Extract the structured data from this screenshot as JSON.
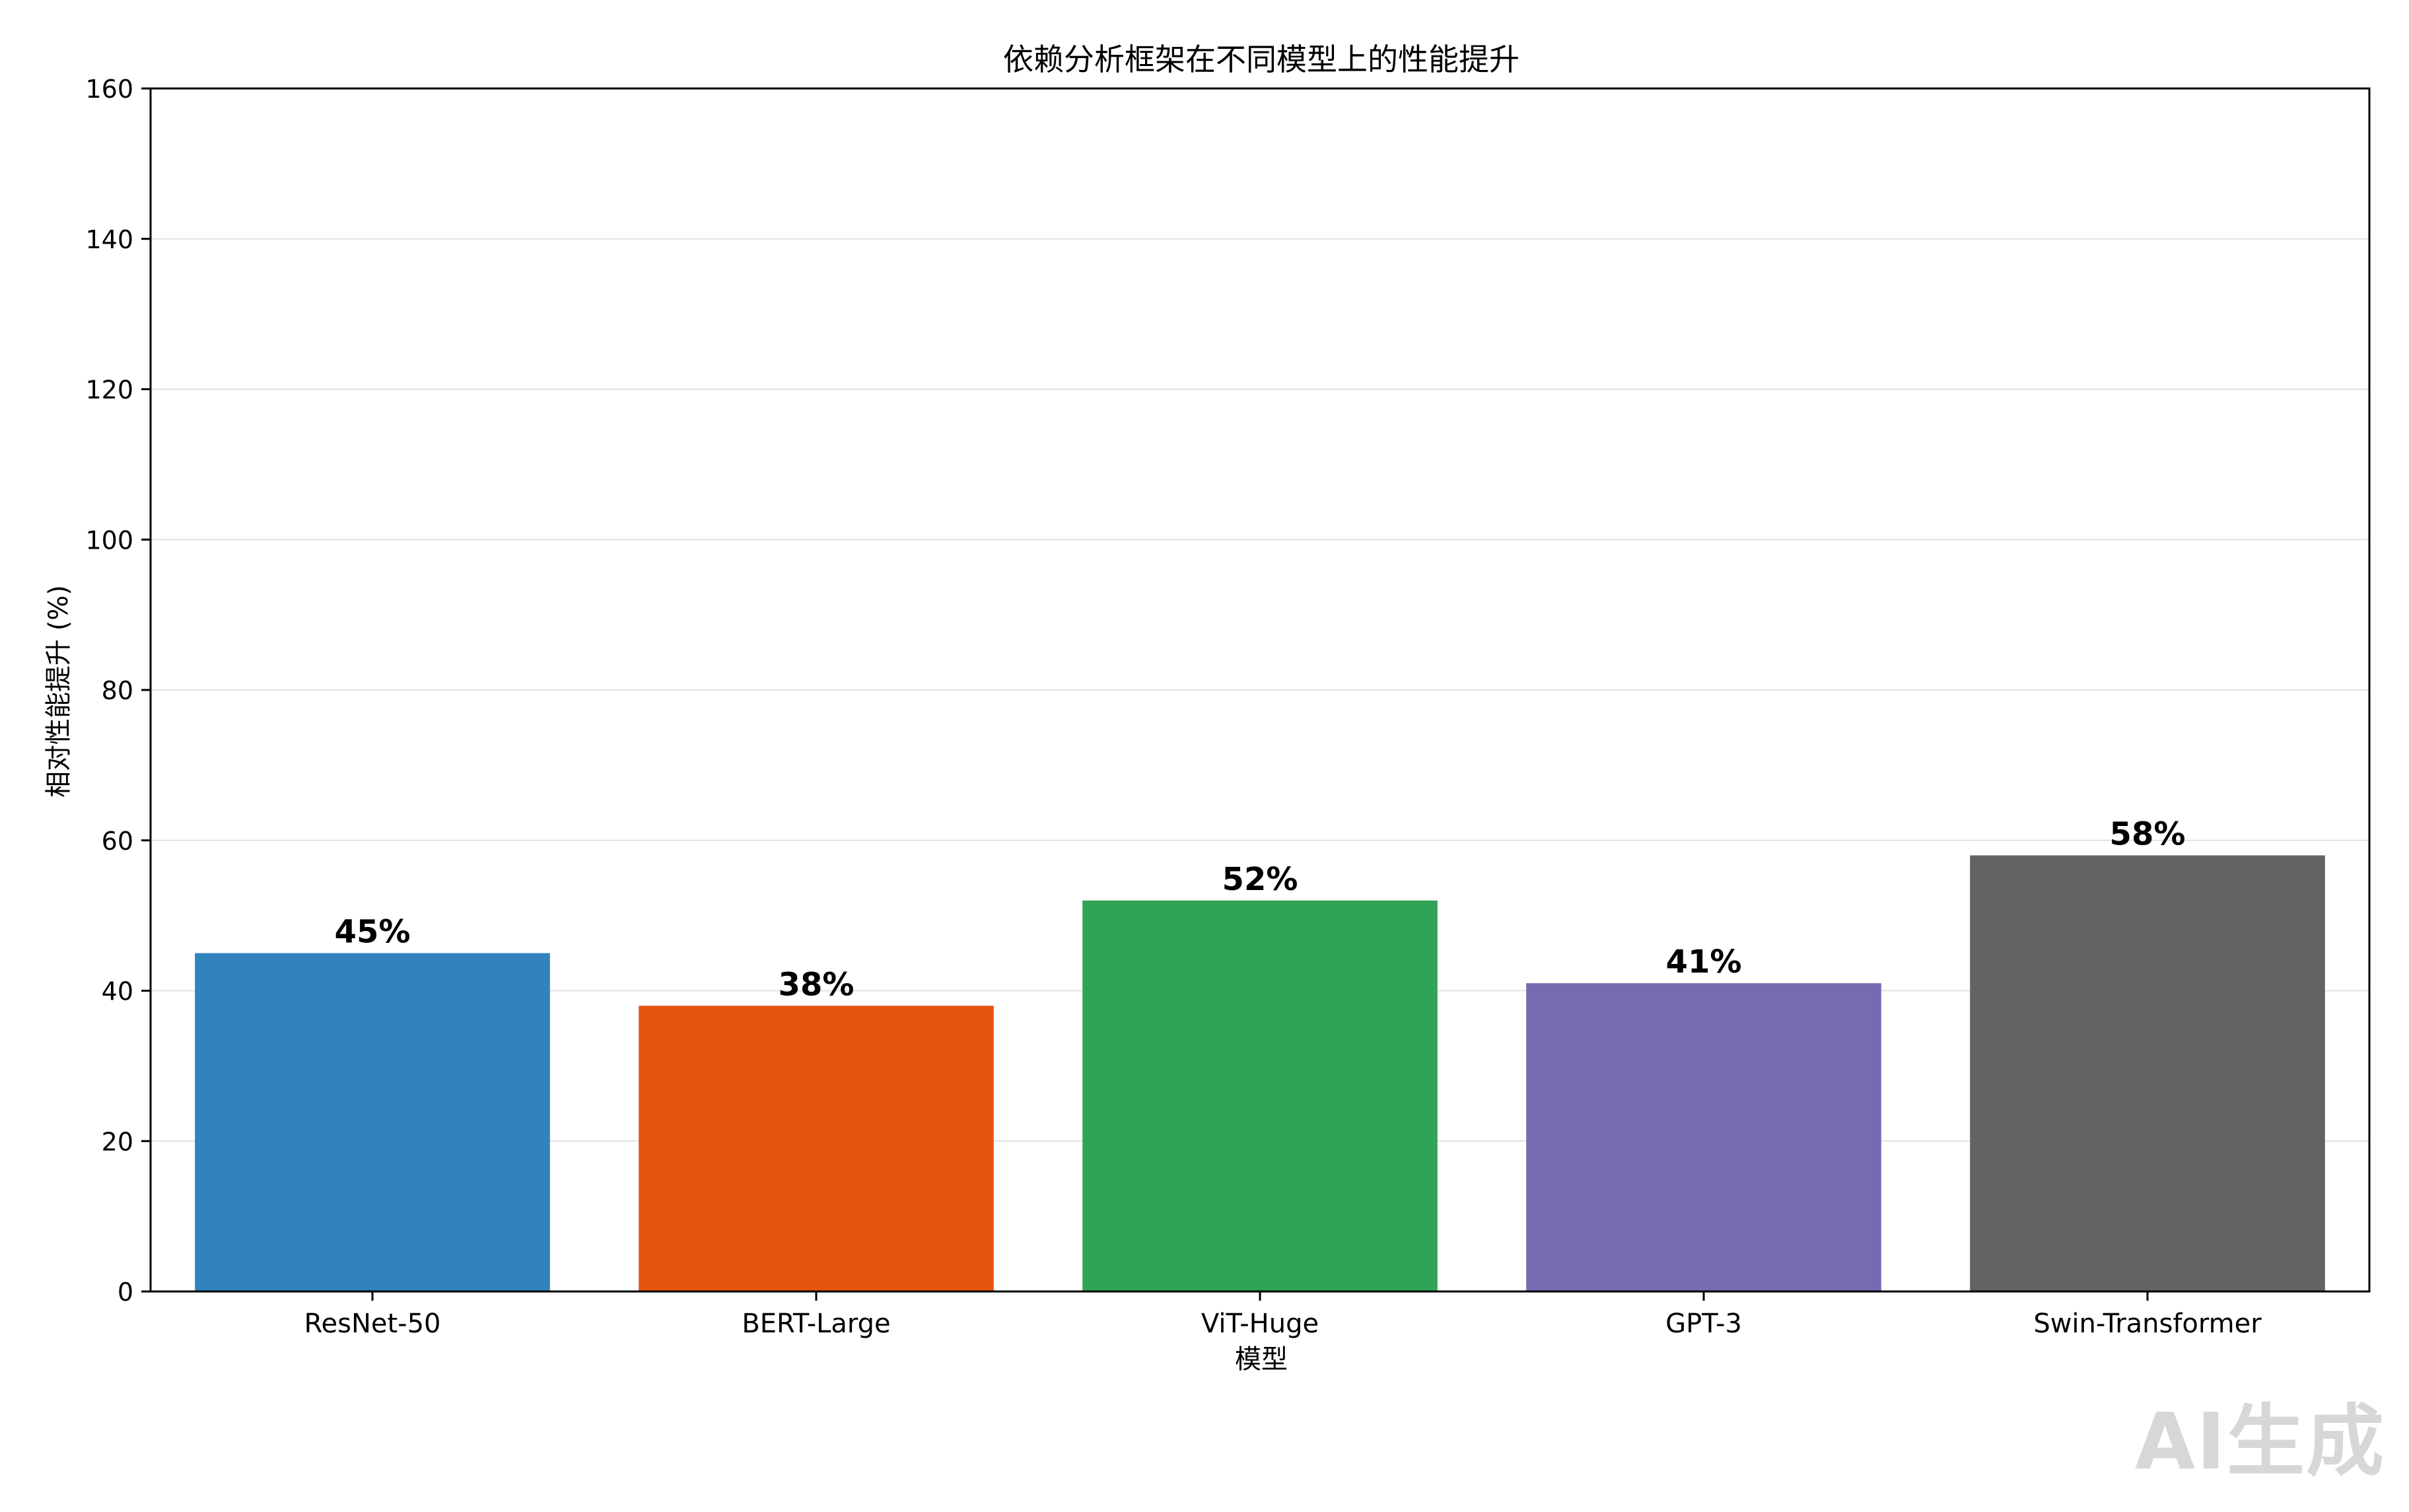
{
  "chart_data": {
    "type": "bar",
    "title": "依赖分析框架在不同模型上的性能提升",
    "xlabel": "模型",
    "ylabel": "相对性能提升 (%)",
    "categories": [
      "ResNet-50",
      "BERT-Large",
      "ViT-Huge",
      "GPT-3",
      "Swin-Transformer"
    ],
    "values": [
      45,
      38,
      52,
      41,
      58
    ],
    "value_labels": [
      "45%",
      "38%",
      "52%",
      "41%",
      "58%"
    ],
    "colors": [
      "#3182bd",
      "#e6550d",
      "#31a354",
      "#756bb1",
      "#636363"
    ],
    "ylim": [
      0,
      160
    ],
    "yticks": [
      0,
      20,
      40,
      60,
      80,
      100,
      120,
      140,
      160
    ],
    "grid": "y"
  },
  "watermark": "AI生成"
}
